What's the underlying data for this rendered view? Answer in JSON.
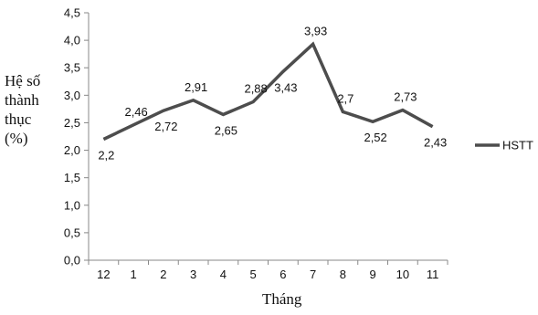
{
  "chart_data": {
    "type": "line",
    "title": "",
    "xlabel": "Tháng",
    "ylabel_lines": [
      "Hệ số",
      "thành",
      "thục",
      "(%)"
    ],
    "categories": [
      "12",
      "1",
      "2",
      "3",
      "4",
      "5",
      "6",
      "7",
      "8",
      "9",
      "10",
      "11"
    ],
    "series": [
      {
        "name": "HSTT",
        "values": [
          2.2,
          2.46,
          2.72,
          2.91,
          2.65,
          2.88,
          3.43,
          3.93,
          2.7,
          2.52,
          2.73,
          2.43
        ]
      }
    ],
    "data_labels": [
      "2,2",
      "2,46",
      "2,72",
      "2,91",
      "2,65",
      "2,88",
      "3,43",
      "3,93",
      "2,7",
      "2,52",
      "2,73",
      "2,43"
    ],
    "ylim": [
      0,
      4.5
    ],
    "yticks": [
      0,
      0.5,
      1.0,
      1.5,
      2.0,
      2.5,
      3.0,
      3.5,
      4.0,
      4.5
    ],
    "ytick_labels": [
      "0,0",
      "0,5",
      "1,0",
      "1,5",
      "2,0",
      "2,5",
      "3,0",
      "3,5",
      "4,0",
      "4,5"
    ],
    "grid": false,
    "legend_position": "right",
    "line_color": "#4d4d4d"
  }
}
